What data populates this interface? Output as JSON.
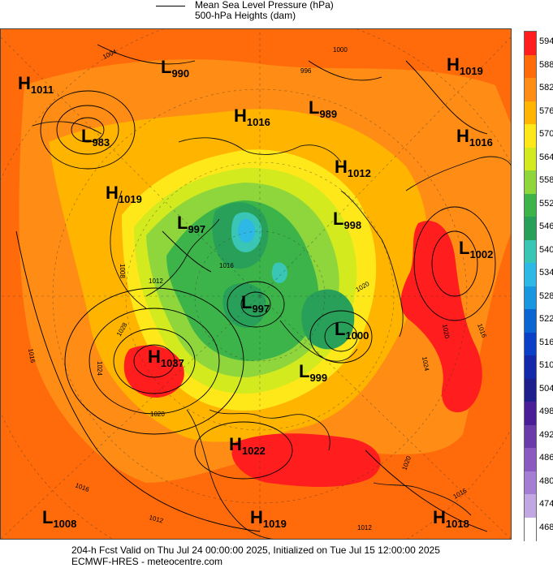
{
  "legend": {
    "line_label": "Mean Sea Level Pressure (hPa)",
    "fill_label": "500-hPa Heights (dam)"
  },
  "footer": {
    "line1": "204-h Fcst Valid on Thu Jul 24 00:00:00 2025, Initialized on Tue Jul 15 12:00:00 2025",
    "line2": "ECMWF-HRES  - meteocentre.com"
  },
  "colorbar": {
    "levels": [
      "594",
      "588",
      "582",
      "576",
      "570",
      "564",
      "558",
      "552",
      "546",
      "540",
      "534",
      "528",
      "522",
      "516",
      "510",
      "504",
      "498",
      "492",
      "486",
      "480",
      "474",
      "468"
    ],
    "colors": [
      "#ff1d1d",
      "#ff6a0a",
      "#ff8c14",
      "#ffb400",
      "#ffe81a",
      "#d2ea1e",
      "#8ed63c",
      "#3cb44a",
      "#28a05a",
      "#39c6b4",
      "#2eb8e6",
      "#1896e0",
      "#0a64d2",
      "#0a40c8",
      "#1428aa",
      "#1e1e8c",
      "#4a1e96",
      "#6a3caa",
      "#8a5ac0",
      "#a47ed2",
      "#c2a8e2",
      "#ffffff"
    ]
  },
  "pressure_centers": [
    {
      "type": "H",
      "value": "1011"
    },
    {
      "type": "L",
      "value": "990"
    },
    {
      "type": "H",
      "value": "1019"
    },
    {
      "type": "L",
      "value": "983"
    },
    {
      "type": "H",
      "value": "1016"
    },
    {
      "type": "L",
      "value": "989"
    },
    {
      "type": "H",
      "value": "1016"
    },
    {
      "type": "H",
      "value": "1012"
    },
    {
      "type": "H",
      "value": "1019"
    },
    {
      "type": "L",
      "value": "997"
    },
    {
      "type": "L",
      "value": "998"
    },
    {
      "type": "L",
      "value": "1002"
    },
    {
      "type": "L",
      "value": "997"
    },
    {
      "type": "L",
      "value": "1000"
    },
    {
      "type": "H",
      "value": "1037"
    },
    {
      "type": "L",
      "value": "999"
    },
    {
      "type": "H",
      "value": "1022"
    },
    {
      "type": "L",
      "value": "1008"
    },
    {
      "type": "H",
      "value": "1019"
    },
    {
      "type": "H",
      "value": "1018"
    }
  ],
  "isobar_labels": [
    "1004",
    "1000",
    "996",
    "1008",
    "1016",
    "1016",
    "1012",
    "1028",
    "1024",
    "1020",
    "1020",
    "1016",
    "1020",
    "1024",
    "1016",
    "1012",
    "1012",
    "1016",
    "1020"
  ]
}
